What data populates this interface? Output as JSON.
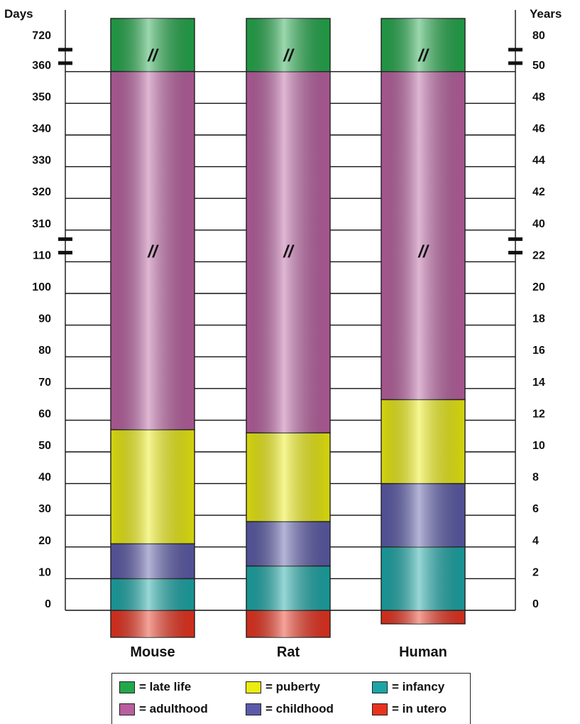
{
  "chart_data": {
    "type": "bar",
    "stacked": true,
    "categories": [
      "Mouse",
      "Rat",
      "Human"
    ],
    "left_axis": {
      "title": "Days",
      "ticks": [
        "0",
        "10",
        "20",
        "30",
        "40",
        "50",
        "60",
        "70",
        "80",
        "90",
        "100",
        "110",
        "310",
        "320",
        "330",
        "340",
        "350",
        "360",
        "720"
      ]
    },
    "right_axis": {
      "title": "Years",
      "ticks": [
        "0",
        "2",
        "4",
        "6",
        "8",
        "10",
        "12",
        "14",
        "16",
        "18",
        "20",
        "22",
        "40",
        "42",
        "44",
        "46",
        "48",
        "50",
        "80"
      ]
    },
    "axis_breaks": [
      "110-310",
      "360-720"
    ],
    "series": [
      {
        "name": "in utero",
        "color": "#e8321e",
        "values": [
          -21,
          -21,
          -9
        ]
      },
      {
        "name": "infancy",
        "color": "#1aa6a6",
        "values": [
          10,
          14,
          4
        ]
      },
      {
        "name": "childhood",
        "color": "#5b5aa8",
        "values": [
          11,
          14,
          4
        ]
      },
      {
        "name": "puberty",
        "color": "#ecec10",
        "values": [
          36,
          28,
          5.3
        ]
      },
      {
        "name": "adulthood",
        "color": "#b85f9f",
        "values": [
          304,
          304,
          36.7
        ]
      },
      {
        "name": "late life",
        "color": "#22a84a",
        "values": [
          360,
          360,
          30
        ]
      }
    ],
    "bar_ranges": {
      "Mouse": [
        [
          -21,
          0
        ],
        [
          0,
          10
        ],
        [
          10,
          21
        ],
        [
          21,
          57
        ],
        [
          57,
          361
        ],
        [
          361,
          721
        ]
      ],
      "Rat": [
        [
          -21,
          0
        ],
        [
          0,
          14
        ],
        [
          14,
          28
        ],
        [
          28,
          56
        ],
        [
          56,
          360
        ],
        [
          360,
          720
        ]
      ],
      "Human": [
        [
          -0.75,
          0
        ],
        [
          0,
          4
        ],
        [
          4,
          8
        ],
        [
          8,
          13.3
        ],
        [
          13.3,
          50
        ],
        [
          50,
          80
        ]
      ]
    },
    "break_marks": "//",
    "legend_placement": "bottom"
  },
  "legend": {
    "items": [
      {
        "key": "late_life",
        "label": "= late life",
        "color": "#22a84a"
      },
      {
        "key": "adulthood",
        "label": "= adulthood",
        "color": "#b85f9f"
      },
      {
        "key": "puberty",
        "label": "= puberty",
        "color": "#ecec10"
      },
      {
        "key": "childhood",
        "label": "= childhood",
        "color": "#5b5aa8"
      },
      {
        "key": "infancy",
        "label": "= infancy",
        "color": "#1aa6a6"
      },
      {
        "key": "in_utero",
        "label": "= in utero",
        "color": "#e8321e"
      }
    ]
  }
}
